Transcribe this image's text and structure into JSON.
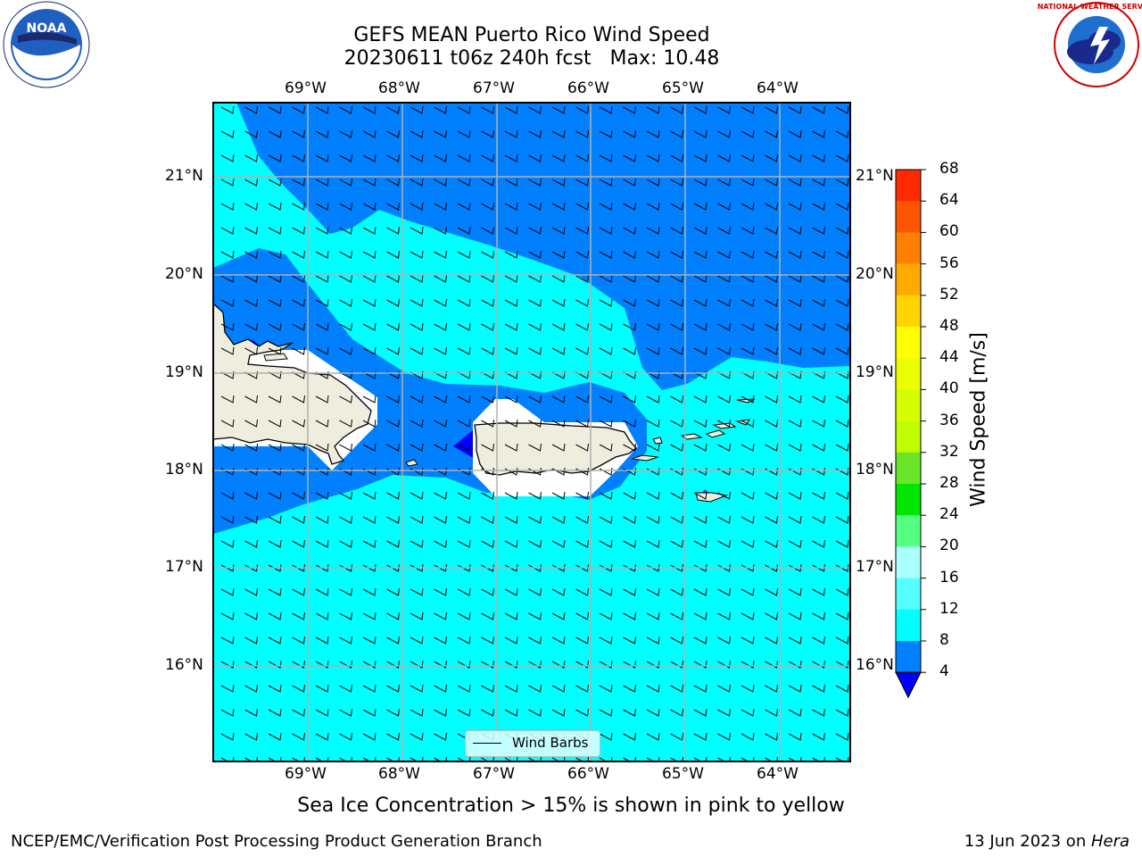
{
  "header": {
    "title_line1": "GEFS MEAN Puerto Rico Wind Speed",
    "title_line2": "20230611 t06z 240h fcst   Max: 10.48"
  },
  "map": {
    "lon_labels": [
      "69°W",
      "68°W",
      "67°W",
      "66°W",
      "65°W",
      "64°W"
    ],
    "lat_labels": [
      "21°N",
      "20°N",
      "19°N",
      "18°N",
      "17°N",
      "16°N"
    ],
    "legend_label": "Wind Barbs"
  },
  "colorbar": {
    "title": "Wind Speed [m/s]",
    "ticks": [
      "68",
      "64",
      "60",
      "56",
      "52",
      "48",
      "44",
      "40",
      "36",
      "32",
      "28",
      "24",
      "20",
      "16",
      "12",
      "8",
      "4"
    ],
    "colors": [
      "#ff0000",
      "#ff2a00",
      "#ff5500",
      "#ff8000",
      "#ffaa00",
      "#ffd400",
      "#ffff00",
      "#eaff00",
      "#d5ff00",
      "#bfff00",
      "#6ae62a",
      "#00e600",
      "#55ff80",
      "#aaffff",
      "#55ffff",
      "#00ffff",
      "#0080ff"
    ],
    "underflow_color": "#0000ff"
  },
  "footer": {
    "note": "Sea Ice Concentration > 15% is shown in pink to yellow",
    "left": "NCEP/EMC/Verification Post Processing Product Generation Branch",
    "right_date": "13 Jun 2023 on ",
    "right_host": "Hera"
  },
  "logos": {
    "noaa_text": "NOAA",
    "nws_text": "NATIONAL WEATHER SERVICE"
  }
}
